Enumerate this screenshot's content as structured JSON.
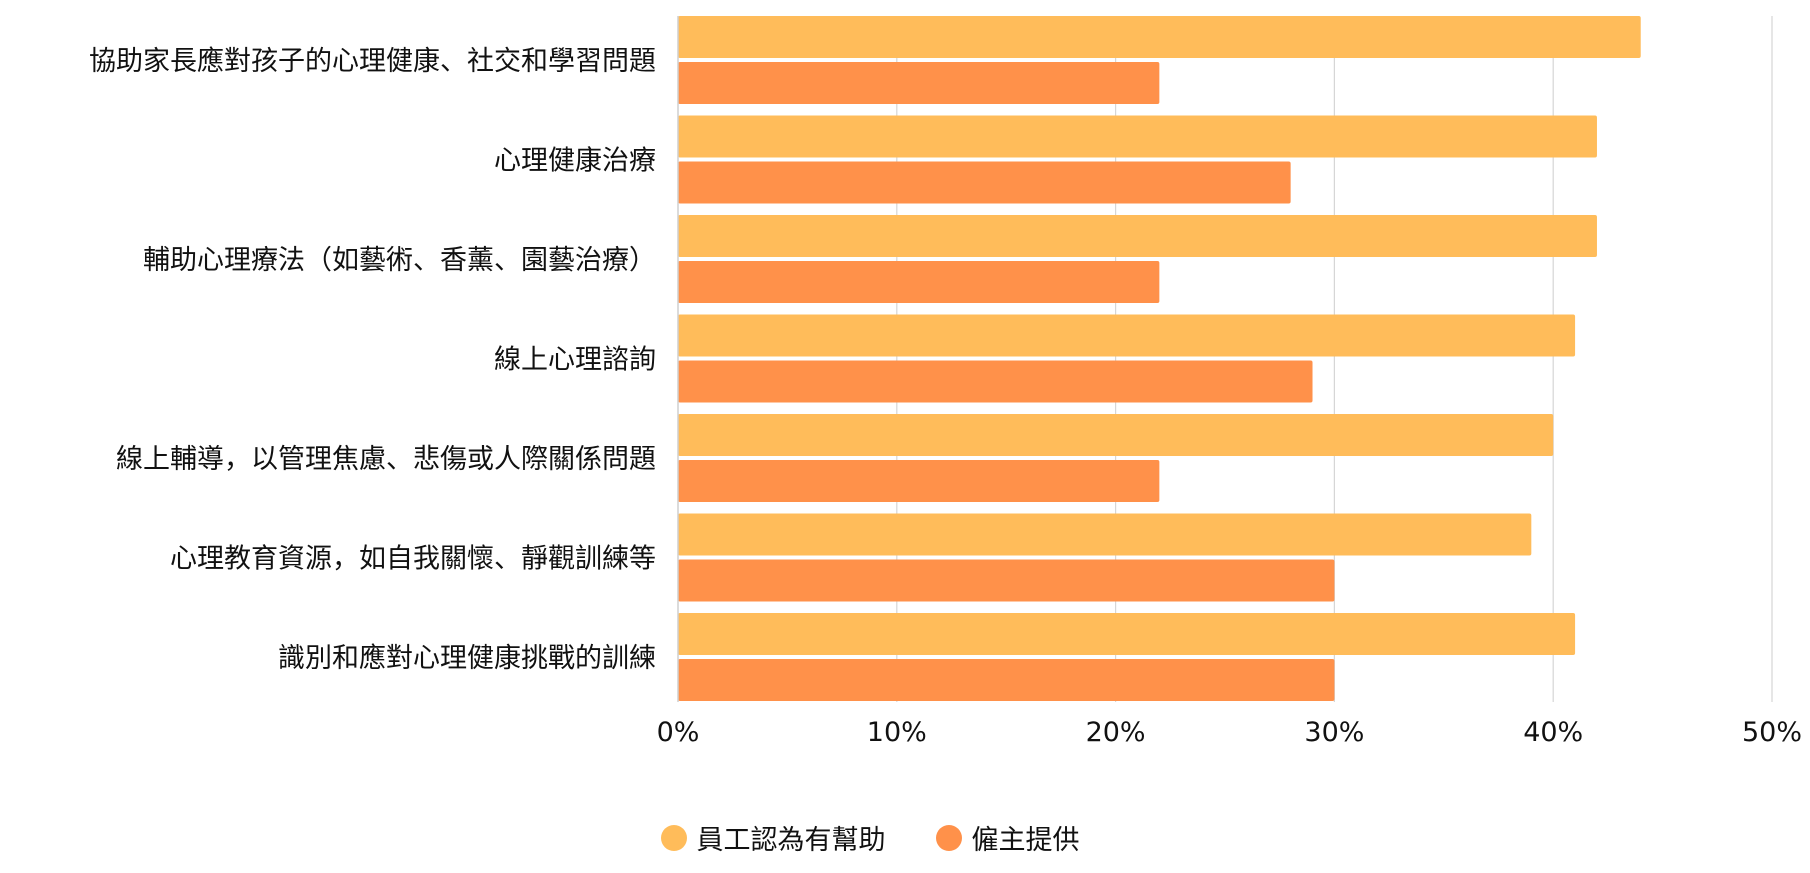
{
  "chart_data": {
    "type": "bar",
    "orientation": "horizontal",
    "categories": [
      "協助家長應對孩子的心理健康、社交和學習問題",
      "心理健康治療",
      "輔助心理療法（如藝術、香薰、園藝治療）",
      "線上心理諮詢",
      "線上輔導，以管理焦慮、悲傷或人際關係問題",
      "心理教育資源，如自我關懷、靜觀訓練等",
      "識別和應對心理健康挑戰的訓練"
    ],
    "series": [
      {
        "name": "員工認為有幫助",
        "color": "#FFBC5A",
        "values": [
          44,
          42,
          42,
          41,
          40,
          39,
          41
        ]
      },
      {
        "name": "僱主提供",
        "color": "#FF914A",
        "values": [
          22,
          28,
          22,
          29,
          22,
          30,
          30
        ]
      }
    ],
    "xlim": [
      0,
      50
    ],
    "xticks": [
      "0%",
      "10%",
      "20%",
      "30%",
      "40%",
      "50%"
    ],
    "grid": true,
    "legend_position": "bottom-center"
  }
}
